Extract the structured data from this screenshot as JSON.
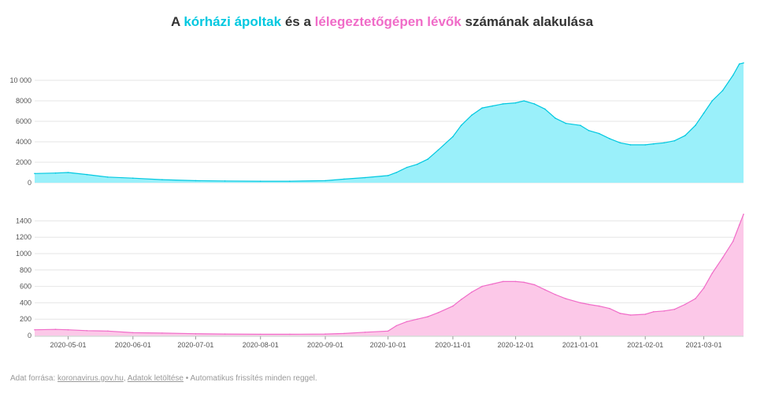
{
  "title": {
    "part1": "A ",
    "highlight1": "kórházi ápoltak",
    "part2": " és a ",
    "highlight2": "lélegeztetőgépen lévők",
    "part3": " számának alakulása"
  },
  "colors": {
    "hospitalized": "#00c8e0",
    "hospitalized_fill": "#9af0fa",
    "ventilator": "#f06cc8",
    "ventilator_fill": "#fcc8e8",
    "grid": "#e6e6e6"
  },
  "chart_data": [
    {
      "type": "area",
      "name": "kórházi ápoltak",
      "ylim": [
        0,
        12000
      ],
      "yticks": [
        0,
        2000,
        4000,
        6000,
        8000,
        10000
      ],
      "ytick_labels": [
        "0",
        "2000",
        "4000",
        "6000",
        "8000",
        "10 000"
      ],
      "x": [
        "2020-04-15",
        "2020-04-25",
        "2020-05-01",
        "2020-05-10",
        "2020-05-20",
        "2020-06-01",
        "2020-06-15",
        "2020-07-01",
        "2020-07-15",
        "2020-08-01",
        "2020-08-15",
        "2020-09-01",
        "2020-09-10",
        "2020-09-20",
        "2020-10-01",
        "2020-10-05",
        "2020-10-10",
        "2020-10-15",
        "2020-10-20",
        "2020-10-25",
        "2020-11-01",
        "2020-11-05",
        "2020-11-10",
        "2020-11-15",
        "2020-11-20",
        "2020-11-25",
        "2020-12-01",
        "2020-12-05",
        "2020-12-10",
        "2020-12-15",
        "2020-12-20",
        "2020-12-25",
        "2021-01-01",
        "2021-01-05",
        "2021-01-10",
        "2021-01-15",
        "2021-01-20",
        "2021-01-25",
        "2021-02-01",
        "2021-02-05",
        "2021-02-10",
        "2021-02-15",
        "2021-02-20",
        "2021-02-25",
        "2021-03-01",
        "2021-03-05",
        "2021-03-10",
        "2021-03-15",
        "2021-03-18",
        "2021-03-20"
      ],
      "values": [
        900,
        950,
        1000,
        800,
        550,
        450,
        300,
        200,
        170,
        150,
        150,
        200,
        350,
        500,
        700,
        1000,
        1500,
        1800,
        2300,
        3200,
        4500,
        5600,
        6600,
        7300,
        7500,
        7700,
        7800,
        8000,
        7700,
        7200,
        6300,
        5800,
        5600,
        5100,
        4800,
        4300,
        3900,
        3700,
        3700,
        3800,
        3900,
        4100,
        4600,
        5600,
        6800,
        8000,
        9000,
        10500,
        11600,
        11700
      ]
    },
    {
      "type": "area",
      "name": "lélegeztetőgépen lévők",
      "ylim": [
        0,
        1500
      ],
      "yticks": [
        0,
        200,
        400,
        600,
        800,
        1000,
        1200,
        1400
      ],
      "ytick_labels": [
        "0",
        "200",
        "400",
        "600",
        "800",
        "1000",
        "1200",
        "1400"
      ],
      "x": [
        "2020-04-15",
        "2020-04-25",
        "2020-05-01",
        "2020-05-10",
        "2020-05-20",
        "2020-06-01",
        "2020-06-15",
        "2020-07-01",
        "2020-07-15",
        "2020-08-01",
        "2020-08-15",
        "2020-09-01",
        "2020-09-10",
        "2020-09-20",
        "2020-10-01",
        "2020-10-05",
        "2020-10-10",
        "2020-10-15",
        "2020-10-20",
        "2020-10-25",
        "2020-11-01",
        "2020-11-05",
        "2020-11-10",
        "2020-11-15",
        "2020-11-20",
        "2020-11-25",
        "2020-12-01",
        "2020-12-05",
        "2020-12-10",
        "2020-12-15",
        "2020-12-20",
        "2020-12-25",
        "2021-01-01",
        "2021-01-05",
        "2021-01-10",
        "2021-01-15",
        "2021-01-20",
        "2021-01-25",
        "2021-02-01",
        "2021-02-05",
        "2021-02-10",
        "2021-02-15",
        "2021-02-20",
        "2021-02-25",
        "2021-03-01",
        "2021-03-05",
        "2021-03-10",
        "2021-03-15",
        "2021-03-18",
        "2021-03-20"
      ],
      "values": [
        70,
        75,
        70,
        60,
        55,
        35,
        30,
        22,
        18,
        15,
        15,
        18,
        25,
        40,
        55,
        120,
        170,
        200,
        230,
        280,
        360,
        440,
        530,
        600,
        630,
        660,
        660,
        650,
        620,
        560,
        500,
        450,
        400,
        380,
        360,
        330,
        270,
        250,
        260,
        290,
        300,
        320,
        380,
        450,
        580,
        760,
        950,
        1150,
        1350,
        1480
      ]
    }
  ],
  "xaxis": {
    "ticks": [
      "2020-05-01",
      "2020-06-01",
      "2020-07-01",
      "2020-08-01",
      "2020-09-01",
      "2020-10-01",
      "2020-11-01",
      "2020-12-01",
      "2021-01-01",
      "2021-02-01",
      "2021-03-01"
    ],
    "range": [
      "2020-04-15",
      "2021-03-20"
    ]
  },
  "footer": {
    "prefix": "Adat forrása: ",
    "link1": "koronavirus.gov.hu",
    "sep": ", ",
    "link2": "Adatok letöltése",
    "suffix": " • Automatikus frissítés minden reggel."
  }
}
